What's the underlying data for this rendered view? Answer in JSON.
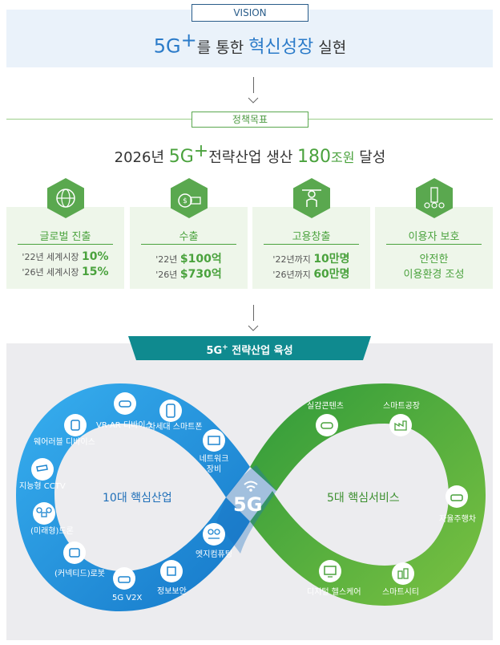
{
  "vision": {
    "tag": "VISION",
    "prefix": "5G",
    "plus": "+",
    "mid": "를 통한 ",
    "highlight": "혁신성장",
    "suffix": " 실현"
  },
  "policy": {
    "tag": "정책목표",
    "year": "2026년 ",
    "prefix": "5G",
    "plus": "+",
    "mid": "전략산업 생산 ",
    "amount": "180",
    "unit": "조원",
    "suffix": " 달성"
  },
  "cards": [
    {
      "title": "글로벌 진출",
      "icon": "globe-icon",
      "line1_pre": "'22년 세계시장 ",
      "line1_val": "10%",
      "line2_pre": "'26년 세계시장 ",
      "line2_val": "15%"
    },
    {
      "title": "수출",
      "icon": "money-bag-icon",
      "line1_pre": "'22년 ",
      "line1_val": "$100억",
      "line2_pre": "'26년 ",
      "line2_val": "$730억"
    },
    {
      "title": "고용창출",
      "icon": "worker-icon",
      "line1_pre": "'22년까지 ",
      "line1_val": "10만명",
      "line2_pre": "'26년까지 ",
      "line2_val": "60만명"
    },
    {
      "title": "이용자 보호",
      "icon": "shield-building-icon",
      "line1": "안전한",
      "line2": "이용환경 조성"
    }
  ],
  "industry": {
    "banner_prefix": "5G",
    "banner_plus": "+",
    "banner_suffix": " 전략산업 육성",
    "center_logo": "5G",
    "left_title": "10대 핵심산업",
    "right_title": "5대 핵심서비스",
    "left_items": [
      "VR·AR 디바이스",
      "차세대 스마트폰",
      "웨어러블 디바이스",
      "네트워크 장비",
      "지능형 CCTV",
      "(미래형)드론",
      "(커넥티드)로봇",
      "5G V2X",
      "정보보안",
      "엣지컴퓨팅"
    ],
    "right_items": [
      "실감콘텐츠",
      "스마트공장",
      "자율주행차",
      "디지털 헬스케어",
      "스마트시티"
    ]
  },
  "colors": {
    "blue": "#2b7bc9",
    "green": "#4aa23d",
    "teal_banner": "#0f8a8f",
    "loop_blue": "#1e9be0",
    "loop_green": "#5ab431"
  }
}
